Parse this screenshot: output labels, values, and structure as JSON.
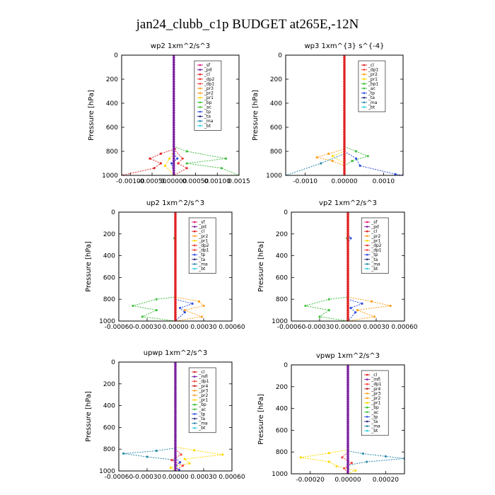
{
  "title": "jan24_clubb_c1p  BUDGET at265E,-12N",
  "colors": {
    "sf": "#e8107a",
    "pd": "#7a1fa0",
    "cl": "#e02020",
    "dp2": "#e83030",
    "dp1": "#ff4040",
    "pr3": "#ffa020",
    "pr2": "#ffa020",
    "pr1": "#ffd800",
    "pr4": "#c02020",
    "bp": "#30c030",
    "ac": "#40c040",
    "tp": "#3050e0",
    "ta": "#2a2a7a",
    "ma": "#2a8aaa",
    "bt": "#30d0e0",
    "mfl": "#7a1fa0"
  },
  "chart_data": [
    {
      "type": "line",
      "title": "wp2   1xm^2/s^3",
      "ylabel": "Pressure [hPa]",
      "ylim": [
        1000,
        0
      ],
      "xlim": [
        -0.0012,
        0.0015
      ],
      "yticks": [
        "0",
        "200",
        "400",
        "600",
        "800",
        "1000"
      ],
      "xticks": [
        "-0.00100",
        "-0.00050",
        "0.00000",
        "0.00050",
        "0.00100",
        "0.0015"
      ],
      "legend": [
        "_sf",
        "_pd",
        "_cl",
        "_dp2",
        "_dp1",
        "_pr3",
        "_pr2",
        "_pr1",
        "_bp",
        "_ac",
        "_tp",
        "_ta",
        "_ma",
        "_bt"
      ],
      "series": [
        {
          "key": "cl",
          "points": [
            [
              0,
              0
            ],
            [
              0,
              700
            ],
            [
              2e-05,
              780
            ],
            [
              -0.0003,
              820
            ],
            [
              -0.00055,
              860
            ],
            [
              -0.0003,
              900
            ],
            [
              -0.00045,
              940
            ],
            [
              -0.0012,
              1000
            ]
          ]
        },
        {
          "key": "dp2",
          "points": [
            [
              0,
              780
            ],
            [
              0.0002,
              860
            ],
            [
              0.0001,
              900
            ],
            [
              0.0003,
              940
            ],
            [
              0,
              1000
            ]
          ]
        },
        {
          "key": "ac",
          "points": [
            [
              0,
              760
            ],
            [
              0.0003,
              800
            ],
            [
              0.0012,
              860
            ],
            [
              0.0003,
              900
            ],
            [
              0.0011,
              940
            ],
            [
              0.0015,
              1000
            ]
          ]
        },
        {
          "key": "pr1",
          "points": [
            [
              0,
              800
            ],
            [
              -0.0001,
              860
            ],
            [
              -0.0002,
              920
            ],
            [
              0,
              1000
            ]
          ]
        },
        {
          "key": "tp",
          "points": [
            [
              0,
              820
            ],
            [
              8e-05,
              860
            ],
            [
              -5e-05,
              900
            ],
            [
              0,
              1000
            ]
          ]
        },
        {
          "key": "pd",
          "points": [
            [
              0,
              0
            ],
            [
              0,
              1000
            ]
          ]
        }
      ]
    },
    {
      "type": "line",
      "title": "wp3   1xm^{3} s^{-4}",
      "ylabel": "Pressure [hPa]",
      "ylim": [
        1000,
        0
      ],
      "xlim": [
        -0.0015,
        0.0015
      ],
      "yticks": [
        "0",
        "200",
        "400",
        "600",
        "800",
        "1000"
      ],
      "xticks": [
        "-0.0010",
        "0.00000",
        "0.0010"
      ],
      "legend": [
        "_cl",
        "_dp1",
        "_pr2",
        "_pr1",
        "_bp1",
        "_ac",
        "_tp",
        "_ta",
        "_ma",
        "_bt"
      ],
      "series": [
        {
          "key": "ac",
          "points": [
            [
              0,
              760
            ],
            [
              0.0003,
              800
            ],
            [
              0.0006,
              840
            ],
            [
              0.0002,
              880
            ],
            [
              0,
              920
            ]
          ]
        },
        {
          "key": "pr2",
          "points": [
            [
              0,
              780
            ],
            [
              -0.0004,
              820
            ],
            [
              -0.0007,
              850
            ],
            [
              -0.0003,
              880
            ],
            [
              0,
              920
            ]
          ]
        },
        {
          "key": "pr1",
          "points": [
            [
              0,
              800
            ],
            [
              -0.0003,
              840
            ],
            [
              0,
              900
            ]
          ]
        },
        {
          "key": "tp",
          "points": [
            [
              0,
              800
            ],
            [
              0.0003,
              860
            ],
            [
              0.0004,
              920
            ],
            [
              0.0013,
              990
            ],
            [
              0.0015,
              1000
            ]
          ]
        },
        {
          "key": "ma",
          "points": [
            [
              0,
              820
            ],
            [
              -0.0006,
              900
            ],
            [
              -0.0015,
              1000
            ]
          ]
        },
        {
          "key": "cl",
          "points": [
            [
              0,
              0
            ],
            [
              0,
              1000
            ]
          ]
        }
      ]
    },
    {
      "type": "line",
      "title": "up2   1xm^2/s^3",
      "ylabel": "Pressure [hPa]",
      "ylim": [
        1000,
        0
      ],
      "xlim": [
        -0.0006,
        0.0006
      ],
      "yticks": [
        "0",
        "200",
        "400",
        "600",
        "800",
        "1000"
      ],
      "xticks": [
        "-0.00060",
        "-0.00030",
        "0.00000",
        "0.00030",
        "0.00060"
      ],
      "legend": [
        "_sf",
        "_pd",
        "_cl",
        "_pr2",
        "_pr1",
        "_dp2",
        "_dp1",
        "_tp",
        "_ta",
        "_ma",
        "_bt"
      ],
      "series": [
        {
          "key": "ac",
          "points": [
            [
              0,
              200
            ],
            [
              -1e-05,
              240
            ],
            [
              0,
              280
            ],
            [
              0,
              780
            ],
            [
              -0.0002,
              800
            ],
            [
              -0.00045,
              860
            ],
            [
              -0.0002,
              900
            ],
            [
              -0.00035,
              960
            ],
            [
              0,
              1000
            ]
          ]
        },
        {
          "key": "pr2",
          "points": [
            [
              0,
              780
            ],
            [
              0.00025,
              820
            ],
            [
              0.0003,
              860
            ],
            [
              0.0001,
              900
            ],
            [
              0.00028,
              960
            ],
            [
              0,
              1000
            ]
          ]
        },
        {
          "key": "tp",
          "points": [
            [
              0,
              800
            ],
            [
              0.00018,
              840
            ],
            [
              5e-05,
              880
            ],
            [
              0.0001,
              920
            ],
            [
              0,
              1000
            ]
          ]
        },
        {
          "key": "cl",
          "points": [
            [
              0,
              0
            ],
            [
              0,
              1000
            ]
          ]
        }
      ]
    },
    {
      "type": "line",
      "title": "vp2   1xm^2/s^3",
      "ylabel": "Pressure [hPa]",
      "ylim": [
        1000,
        0
      ],
      "xlim": [
        -0.0006,
        0.0006
      ],
      "yticks": [
        "0",
        "200",
        "400",
        "600",
        "800",
        "1000"
      ],
      "xticks": [
        "-0.00060",
        "-0.00030",
        "0.00000",
        "0.00030",
        "0.00060"
      ],
      "legend": [
        "_sf",
        "_pd",
        "_cl",
        "_pr2",
        "_pr1",
        "_dp2",
        "_dp1",
        "_tp",
        "_ta",
        "_ma",
        "_bt"
      ],
      "series": [
        {
          "key": "ac",
          "points": [
            [
              0,
              200
            ],
            [
              -1e-05,
              240
            ],
            [
              0,
              280
            ],
            [
              0,
              780
            ],
            [
              -0.0002,
              800
            ],
            [
              -0.00045,
              860
            ],
            [
              -0.0002,
              900
            ],
            [
              -0.0003,
              960
            ],
            [
              0,
              1000
            ]
          ]
        },
        {
          "key": "pr2",
          "points": [
            [
              0,
              780
            ],
            [
              0.00025,
              820
            ],
            [
              0.00045,
              860
            ],
            [
              0.0001,
              900
            ],
            [
              0.00028,
              960
            ],
            [
              0,
              1000
            ]
          ]
        },
        {
          "key": "tp",
          "points": [
            [
              0,
              200
            ],
            [
              3e-05,
              240
            ],
            [
              0,
              280
            ],
            [
              0,
              800
            ],
            [
              0.00015,
              840
            ],
            [
              3e-05,
              880
            ],
            [
              8e-05,
              920
            ],
            [
              0,
              1000
            ]
          ]
        },
        {
          "key": "cl",
          "points": [
            [
              0,
              0
            ],
            [
              0,
              1000
            ]
          ]
        }
      ]
    },
    {
      "type": "line",
      "title": "upwp   1xm^2/s^3",
      "ylabel": "Pressure [hPa]",
      "ylim": [
        1000,
        0
      ],
      "xlim": [
        -0.0006,
        0.0006
      ],
      "yticks": [
        "0",
        "200",
        "400",
        "600",
        "800",
        "1000"
      ],
      "xticks": [
        "-0.00060",
        "-0.00030",
        "0.00000",
        "0.00030",
        "0.00060"
      ],
      "legend": [
        "_cl",
        "_mfl",
        "_dp1",
        "_pr4",
        "_pr3",
        "_pr2",
        "_pr1",
        "_bp",
        "_ac",
        "_tp",
        "_ta",
        "_ma",
        "_bt"
      ],
      "series": [
        {
          "key": "pr1",
          "points": [
            [
              0,
              780
            ],
            [
              0.0002,
              810
            ],
            [
              0.0005,
              850
            ],
            [
              0.0001,
              890
            ],
            [
              0.00015,
              930
            ],
            [
              -5e-05,
              970
            ],
            [
              0,
              1000
            ]
          ]
        },
        {
          "key": "ma",
          "points": [
            [
              0,
              790
            ],
            [
              -0.0002,
              815
            ],
            [
              -0.00055,
              840
            ],
            [
              -0.0003,
              870
            ],
            [
              0,
              900
            ]
          ]
        },
        {
          "key": "dp1",
          "points": [
            [
              0,
              800
            ],
            [
              6e-05,
              850
            ],
            [
              -4e-05,
              900
            ],
            [
              8e-05,
              950
            ],
            [
              0,
              1000
            ]
          ]
        },
        {
          "key": "tp",
          "points": [
            [
              0,
              880
            ],
            [
              5e-05,
              920
            ],
            [
              0,
              960
            ],
            [
              4e-05,
              990
            ]
          ]
        },
        {
          "key": "mfl",
          "points": [
            [
              0,
              0
            ],
            [
              0,
              1000
            ]
          ]
        }
      ]
    },
    {
      "type": "line",
      "title": "vpwp   1xm^2/s^3",
      "ylabel": "Pressure [hPa]",
      "ylim": [
        1000,
        0
      ],
      "xlim": [
        -0.0003,
        0.0003
      ],
      "yticks": [
        "0",
        "200",
        "400",
        "600",
        "800",
        "1000"
      ],
      "xticks": [
        "-0.00020",
        "0.00000",
        "0.00020"
      ],
      "legend": [
        "_cl",
        "_mfl",
        "_dp1",
        "_pr4",
        "_pr3",
        "_pr2",
        "_pr1",
        "_bp",
        "_ac",
        "_tp",
        "_ta",
        "_ma",
        "_bt"
      ],
      "series": [
        {
          "key": "pr1",
          "points": [
            [
              0,
              780
            ],
            [
              -0.0001,
              810
            ],
            [
              -0.00025,
              850
            ],
            [
              -0.0001,
              890
            ],
            [
              -6e-05,
              930
            ],
            [
              4e-05,
              970
            ],
            [
              0,
              1000
            ]
          ]
        },
        {
          "key": "ma",
          "points": [
            [
              0,
              790
            ],
            [
              8e-05,
              815
            ],
            [
              0.0002,
              840
            ],
            [
              0.0003,
              860
            ],
            [
              0.0001,
              890
            ],
            [
              0,
              920
            ]
          ]
        },
        {
          "key": "dp1",
          "points": [
            [
              0,
              800
            ],
            [
              -3e-05,
              850
            ],
            [
              2e-05,
              900
            ],
            [
              -2e-05,
              950
            ],
            [
              0,
              1000
            ]
          ]
        },
        {
          "key": "mfl",
          "points": [
            [
              0,
              0
            ],
            [
              0,
              1000
            ]
          ]
        }
      ]
    }
  ]
}
